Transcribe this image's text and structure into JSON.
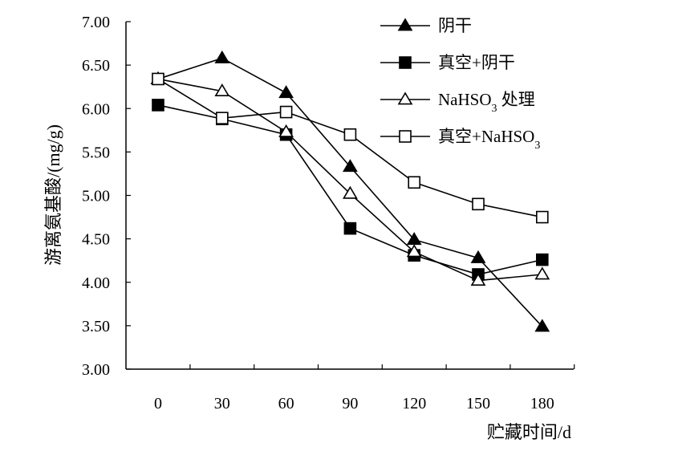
{
  "chart_data": {
    "type": "line",
    "title": "",
    "xlabel": "贮藏时间/d",
    "ylabel": "游离氨基酸/(mg/g)",
    "x": [
      0,
      30,
      60,
      90,
      120,
      150,
      180
    ],
    "x_tick_labels": [
      "0",
      "30",
      "60",
      "90",
      "120",
      "150",
      "180"
    ],
    "ylim": [
      3.0,
      7.0
    ],
    "y_ticks": [
      3.0,
      3.5,
      4.0,
      4.5,
      5.0,
      5.5,
      6.0,
      6.5,
      7.0
    ],
    "y_tick_labels": [
      "3.00",
      "3.50",
      "4.00",
      "4.50",
      "5.00",
      "5.50",
      "6.00",
      "6.50",
      "7.00"
    ],
    "grid": false,
    "legend_position": "top-right",
    "series": [
      {
        "name": "阴干",
        "legend_text": "阴干",
        "legend_sub": "",
        "legend_tail": "",
        "marker": "triangle",
        "filled": true,
        "values": [
          6.34,
          6.58,
          6.18,
          5.33,
          4.49,
          4.28,
          3.49
        ]
      },
      {
        "name": "真空+阴干",
        "legend_text": "真空+阴干",
        "legend_sub": "",
        "legend_tail": "",
        "marker": "square",
        "filled": true,
        "values": [
          6.04,
          5.88,
          5.7,
          4.62,
          4.31,
          4.09,
          4.26
        ]
      },
      {
        "name": "NaHSO3 处理",
        "legend_text": "NaHSO",
        "legend_sub": "3",
        "legend_tail": " 处理",
        "marker": "triangle",
        "filled": false,
        "values": [
          6.34,
          6.2,
          5.73,
          5.02,
          4.35,
          4.02,
          4.09
        ]
      },
      {
        "name": "真空+NaHSO3",
        "legend_text": "真空+NaHSO",
        "legend_sub": "3",
        "legend_tail": "",
        "marker": "square",
        "filled": false,
        "values": [
          6.34,
          5.89,
          5.96,
          5.7,
          5.15,
          4.9,
          4.75
        ]
      }
    ],
    "colors": {
      "line": "#000000",
      "background": "#ffffff"
    }
  }
}
